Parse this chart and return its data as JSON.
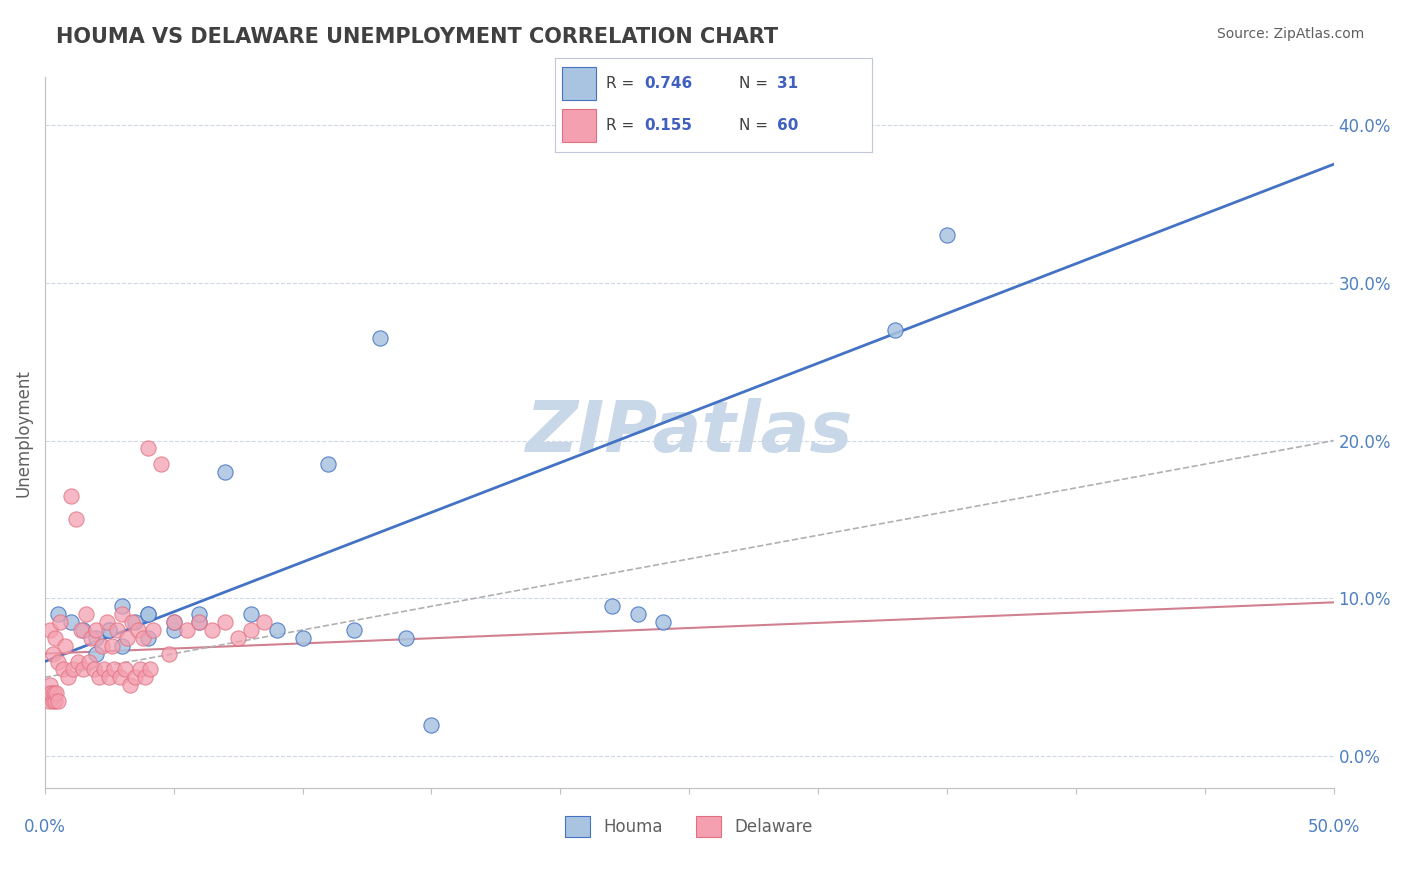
{
  "title": "HOUMA VS DELAWARE UNEMPLOYMENT CORRELATION CHART",
  "source_text": "Source: ZipAtlas.com",
  "ylabel": "Unemployment",
  "y_tick_labels": [
    "0.0%",
    "10.0%",
    "20.0%",
    "30.0%",
    "40.0%"
  ],
  "y_tick_values": [
    0,
    10,
    20,
    30,
    40
  ],
  "xlim": [
    0,
    50
  ],
  "ylim": [
    -2,
    43
  ],
  "houma_R": 0.746,
  "houma_N": 31,
  "delaware_R": 0.155,
  "delaware_N": 60,
  "houma_color": "#a8c4e0",
  "delaware_color": "#f4a0b0",
  "houma_line_color": "#4472c4",
  "delaware_line_color": "#d08090",
  "watermark_color": "#c8d8e8",
  "title_color": "#404040",
  "legend_text_color": "#4060c0",
  "houma_scatter_x": [
    0.5,
    1,
    1.5,
    2,
    2.5,
    3,
    3.5,
    4,
    5,
    6,
    7,
    8,
    9,
    10,
    11,
    12,
    13,
    14,
    4,
    5,
    6,
    2,
    3,
    4,
    22,
    23,
    24,
    33,
    35,
    15,
    2.5
  ],
  "houma_scatter_y": [
    9,
    8.5,
    8,
    7.5,
    8,
    9.5,
    8.5,
    9,
    8,
    8.5,
    18,
    9,
    8,
    7.5,
    18.5,
    8,
    26.5,
    7.5,
    9,
    8.5,
    9,
    6.5,
    7,
    7.5,
    9.5,
    9,
    8.5,
    27,
    33,
    2,
    8
  ],
  "delaware_scatter_x": [
    0.2,
    0.4,
    0.6,
    0.8,
    1.0,
    1.2,
    1.4,
    1.6,
    1.8,
    2.0,
    2.2,
    2.4,
    2.6,
    2.8,
    3.0,
    3.2,
    3.4,
    3.6,
    3.8,
    4.0,
    4.2,
    4.5,
    5.0,
    5.5,
    6.0,
    6.5,
    7.0,
    7.5,
    8.0,
    8.5,
    0.3,
    0.5,
    0.7,
    0.9,
    1.1,
    1.3,
    1.5,
    1.7,
    1.9,
    2.1,
    2.3,
    2.5,
    2.7,
    2.9,
    3.1,
    3.3,
    3.5,
    3.7,
    3.9,
    4.1,
    0.1,
    0.15,
    0.2,
    0.25,
    0.3,
    0.35,
    0.4,
    0.45,
    0.5,
    4.8
  ],
  "delaware_scatter_y": [
    8.0,
    7.5,
    8.5,
    7.0,
    16.5,
    15.0,
    8.0,
    9.0,
    7.5,
    8.0,
    7.0,
    8.5,
    7.0,
    8.0,
    9.0,
    7.5,
    8.5,
    8.0,
    7.5,
    19.5,
    8.0,
    18.5,
    8.5,
    8.0,
    8.5,
    8.0,
    8.5,
    7.5,
    8.0,
    8.5,
    6.5,
    6.0,
    5.5,
    5.0,
    5.5,
    6.0,
    5.5,
    6.0,
    5.5,
    5.0,
    5.5,
    5.0,
    5.5,
    5.0,
    5.5,
    4.5,
    5.0,
    5.5,
    5.0,
    5.5,
    4.0,
    3.5,
    4.5,
    4.0,
    3.5,
    4.0,
    3.5,
    4.0,
    3.5,
    6.5
  ],
  "background_color": "#ffffff",
  "grid_color": "#d0d8e8",
  "axis_label_color": "#5080c0"
}
